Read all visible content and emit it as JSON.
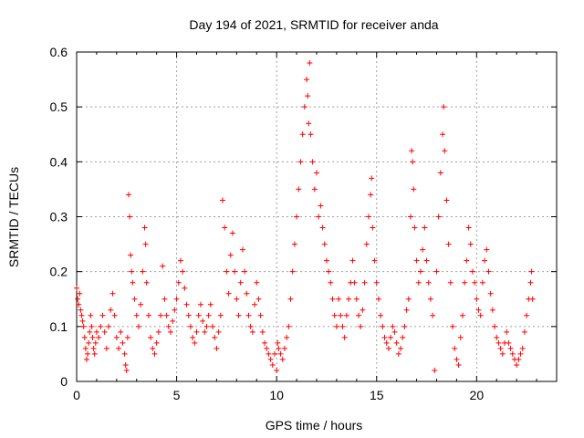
{
  "chart_data": {
    "type": "scatter",
    "title": "Day 194 of 2021, SRMTID for receiver anda",
    "xlabel": "GPS time / hours",
    "ylabel": "SRMTID / TECUs",
    "xlim": [
      0,
      24
    ],
    "ylim": [
      0,
      0.6
    ],
    "xticks": [
      0,
      5,
      10,
      15,
      20
    ],
    "yticks": [
      0,
      0.1,
      0.2,
      0.3,
      0.4,
      0.5,
      0.6
    ],
    "xtick_labels": [
      "0",
      "5",
      "10",
      "15",
      "20"
    ],
    "ytick_labels": [
      "0",
      "0.1",
      "0.2",
      "0.3",
      "0.4",
      "0.5",
      "0.6"
    ],
    "grid": true,
    "marker": "+",
    "series": [
      {
        "name": "anda",
        "color": "#ff0000",
        "points": [
          [
            0.0,
            0.17
          ],
          [
            0.05,
            0.15
          ],
          [
            0.1,
            0.14
          ],
          [
            0.15,
            0.16
          ],
          [
            0.2,
            0.13
          ],
          [
            0.25,
            0.12
          ],
          [
            0.3,
            0.11
          ],
          [
            0.35,
            0.1
          ],
          [
            0.4,
            0.08
          ],
          [
            0.45,
            0.06
          ],
          [
            0.5,
            0.04
          ],
          [
            0.55,
            0.05
          ],
          [
            0.6,
            0.07
          ],
          [
            0.65,
            0.09
          ],
          [
            0.7,
            0.12
          ],
          [
            0.75,
            0.1
          ],
          [
            0.8,
            0.08
          ],
          [
            0.85,
            0.06
          ],
          [
            0.9,
            0.05
          ],
          [
            0.95,
            0.07
          ],
          [
            1.0,
            0.09
          ],
          [
            1.1,
            0.08
          ],
          [
            1.2,
            0.1
          ],
          [
            1.3,
            0.12
          ],
          [
            1.4,
            0.09
          ],
          [
            1.5,
            0.06
          ],
          [
            1.6,
            0.1
          ],
          [
            1.7,
            0.13
          ],
          [
            1.8,
            0.16
          ],
          [
            1.9,
            0.12
          ],
          [
            2.0,
            0.08
          ],
          [
            2.1,
            0.06
          ],
          [
            2.2,
            0.09
          ],
          [
            2.3,
            0.07
          ],
          [
            2.4,
            0.05
          ],
          [
            2.45,
            0.03
          ],
          [
            2.5,
            0.02
          ],
          [
            2.55,
            0.08
          ],
          [
            2.6,
            0.34
          ],
          [
            2.65,
            0.3
          ],
          [
            2.7,
            0.23
          ],
          [
            2.75,
            0.2
          ],
          [
            2.8,
            0.18
          ],
          [
            2.9,
            0.15
          ],
          [
            3.0,
            0.12
          ],
          [
            3.1,
            0.1
          ],
          [
            3.2,
            0.14
          ],
          [
            3.3,
            0.2
          ],
          [
            3.4,
            0.28
          ],
          [
            3.45,
            0.25
          ],
          [
            3.5,
            0.18
          ],
          [
            3.6,
            0.12
          ],
          [
            3.7,
            0.08
          ],
          [
            3.8,
            0.06
          ],
          [
            3.9,
            0.05
          ],
          [
            4.0,
            0.07
          ],
          [
            4.1,
            0.09
          ],
          [
            4.2,
            0.12
          ],
          [
            4.3,
            0.21
          ],
          [
            4.4,
            0.15
          ],
          [
            4.5,
            0.12
          ],
          [
            4.6,
            0.1
          ],
          [
            4.7,
            0.09
          ],
          [
            4.8,
            0.11
          ],
          [
            4.9,
            0.13
          ],
          [
            5.0,
            0.15
          ],
          [
            5.1,
            0.18
          ],
          [
            5.2,
            0.22
          ],
          [
            5.3,
            0.2
          ],
          [
            5.4,
            0.17
          ],
          [
            5.5,
            0.14
          ],
          [
            5.6,
            0.12
          ],
          [
            5.7,
            0.1
          ],
          [
            5.8,
            0.08
          ],
          [
            5.9,
            0.07
          ],
          [
            6.0,
            0.09
          ],
          [
            6.1,
            0.12
          ],
          [
            6.2,
            0.14
          ],
          [
            6.3,
            0.11
          ],
          [
            6.4,
            0.09
          ],
          [
            6.5,
            0.1
          ],
          [
            6.6,
            0.12
          ],
          [
            6.7,
            0.14
          ],
          [
            6.8,
            0.1
          ],
          [
            6.9,
            0.08
          ],
          [
            7.0,
            0.06
          ],
          [
            7.1,
            0.09
          ],
          [
            7.2,
            0.12
          ],
          [
            7.3,
            0.33
          ],
          [
            7.4,
            0.28
          ],
          [
            7.5,
            0.2
          ],
          [
            7.6,
            0.16
          ],
          [
            7.7,
            0.23
          ],
          [
            7.8,
            0.27
          ],
          [
            7.9,
            0.2
          ],
          [
            8.0,
            0.15
          ],
          [
            8.1,
            0.12
          ],
          [
            8.2,
            0.18
          ],
          [
            8.3,
            0.24
          ],
          [
            8.4,
            0.2
          ],
          [
            8.5,
            0.16
          ],
          [
            8.6,
            0.12
          ],
          [
            8.7,
            0.1
          ],
          [
            8.8,
            0.09
          ],
          [
            8.9,
            0.14
          ],
          [
            9.0,
            0.18
          ],
          [
            9.1,
            0.15
          ],
          [
            9.2,
            0.12
          ],
          [
            9.3,
            0.09
          ],
          [
            9.4,
            0.07
          ],
          [
            9.5,
            0.06
          ],
          [
            9.6,
            0.05
          ],
          [
            9.7,
            0.04
          ],
          [
            9.8,
            0.03
          ],
          [
            9.9,
            0.05
          ],
          [
            10.0,
            0.02
          ],
          [
            10.05,
            0.07
          ],
          [
            10.1,
            0.06
          ],
          [
            10.2,
            0.05
          ],
          [
            10.3,
            0.04
          ],
          [
            10.4,
            0.06
          ],
          [
            10.5,
            0.08
          ],
          [
            10.6,
            0.1
          ],
          [
            10.7,
            0.15
          ],
          [
            10.8,
            0.2
          ],
          [
            10.9,
            0.25
          ],
          [
            11.0,
            0.3
          ],
          [
            11.1,
            0.35
          ],
          [
            11.2,
            0.4
          ],
          [
            11.3,
            0.45
          ],
          [
            11.4,
            0.5
          ],
          [
            11.5,
            0.55
          ],
          [
            11.55,
            0.52
          ],
          [
            11.6,
            0.47
          ],
          [
            11.65,
            0.58
          ],
          [
            11.7,
            0.45
          ],
          [
            11.8,
            0.4
          ],
          [
            11.9,
            0.35
          ],
          [
            12.0,
            0.38
          ],
          [
            12.1,
            0.3
          ],
          [
            12.2,
            0.32
          ],
          [
            12.3,
            0.28
          ],
          [
            12.4,
            0.25
          ],
          [
            12.5,
            0.22
          ],
          [
            12.6,
            0.2
          ],
          [
            12.7,
            0.18
          ],
          [
            12.8,
            0.15
          ],
          [
            12.9,
            0.12
          ],
          [
            13.0,
            0.1
          ],
          [
            13.1,
            0.15
          ],
          [
            13.2,
            0.12
          ],
          [
            13.3,
            0.1
          ],
          [
            13.4,
            0.08
          ],
          [
            13.5,
            0.12
          ],
          [
            13.6,
            0.15
          ],
          [
            13.7,
            0.18
          ],
          [
            13.8,
            0.22
          ],
          [
            13.9,
            0.18
          ],
          [
            14.0,
            0.15
          ],
          [
            14.1,
            0.12
          ],
          [
            14.2,
            0.1
          ],
          [
            14.3,
            0.13
          ],
          [
            14.4,
            0.18
          ],
          [
            14.5,
            0.25
          ],
          [
            14.6,
            0.3
          ],
          [
            14.7,
            0.34
          ],
          [
            14.75,
            0.37
          ],
          [
            14.8,
            0.28
          ],
          [
            14.9,
            0.22
          ],
          [
            15.0,
            0.18
          ],
          [
            15.1,
            0.15
          ],
          [
            15.2,
            0.12
          ],
          [
            15.3,
            0.1
          ],
          [
            15.4,
            0.08
          ],
          [
            15.5,
            0.07
          ],
          [
            15.6,
            0.06
          ],
          [
            15.7,
            0.08
          ],
          [
            15.8,
            0.1
          ],
          [
            15.9,
            0.09
          ],
          [
            16.0,
            0.07
          ],
          [
            16.1,
            0.05
          ],
          [
            16.2,
            0.06
          ],
          [
            16.3,
            0.08
          ],
          [
            16.4,
            0.1
          ],
          [
            16.5,
            0.13
          ],
          [
            16.6,
            0.15
          ],
          [
            16.7,
            0.3
          ],
          [
            16.75,
            0.42
          ],
          [
            16.8,
            0.4
          ],
          [
            16.85,
            0.35
          ],
          [
            16.9,
            0.28
          ],
          [
            17.0,
            0.22
          ],
          [
            17.1,
            0.18
          ],
          [
            17.2,
            0.2
          ],
          [
            17.3,
            0.24
          ],
          [
            17.4,
            0.28
          ],
          [
            17.5,
            0.22
          ],
          [
            17.6,
            0.18
          ],
          [
            17.7,
            0.15
          ],
          [
            17.8,
            0.12
          ],
          [
            17.9,
            0.02
          ],
          [
            18.0,
            0.2
          ],
          [
            18.1,
            0.3
          ],
          [
            18.2,
            0.38
          ],
          [
            18.3,
            0.45
          ],
          [
            18.35,
            0.5
          ],
          [
            18.4,
            0.42
          ],
          [
            18.5,
            0.33
          ],
          [
            18.6,
            0.25
          ],
          [
            18.7,
            0.18
          ],
          [
            18.8,
            0.1
          ],
          [
            18.9,
            0.06
          ],
          [
            19.0,
            0.04
          ],
          [
            19.1,
            0.03
          ],
          [
            19.2,
            0.08
          ],
          [
            19.3,
            0.12
          ],
          [
            19.4,
            0.18
          ],
          [
            19.5,
            0.22
          ],
          [
            19.6,
            0.28
          ],
          [
            19.7,
            0.25
          ],
          [
            19.8,
            0.2
          ],
          [
            19.9,
            0.18
          ],
          [
            20.0,
            0.15
          ],
          [
            20.1,
            0.13
          ],
          [
            20.2,
            0.12
          ],
          [
            20.3,
            0.18
          ],
          [
            20.4,
            0.22
          ],
          [
            20.5,
            0.24
          ],
          [
            20.6,
            0.2
          ],
          [
            20.7,
            0.16
          ],
          [
            20.8,
            0.13
          ],
          [
            20.9,
            0.1
          ],
          [
            21.0,
            0.08
          ],
          [
            21.1,
            0.07
          ],
          [
            21.2,
            0.06
          ],
          [
            21.3,
            0.05
          ],
          [
            21.4,
            0.07
          ],
          [
            21.5,
            0.09
          ],
          [
            21.6,
            0.07
          ],
          [
            21.7,
            0.06
          ],
          [
            21.8,
            0.05
          ],
          [
            21.9,
            0.04
          ],
          [
            22.0,
            0.03
          ],
          [
            22.1,
            0.04
          ],
          [
            22.2,
            0.05
          ],
          [
            22.3,
            0.06
          ],
          [
            22.4,
            0.09
          ],
          [
            22.5,
            0.12
          ],
          [
            22.6,
            0.15
          ],
          [
            22.7,
            0.18
          ],
          [
            22.75,
            0.2
          ],
          [
            22.8,
            0.15
          ]
        ]
      }
    ]
  }
}
